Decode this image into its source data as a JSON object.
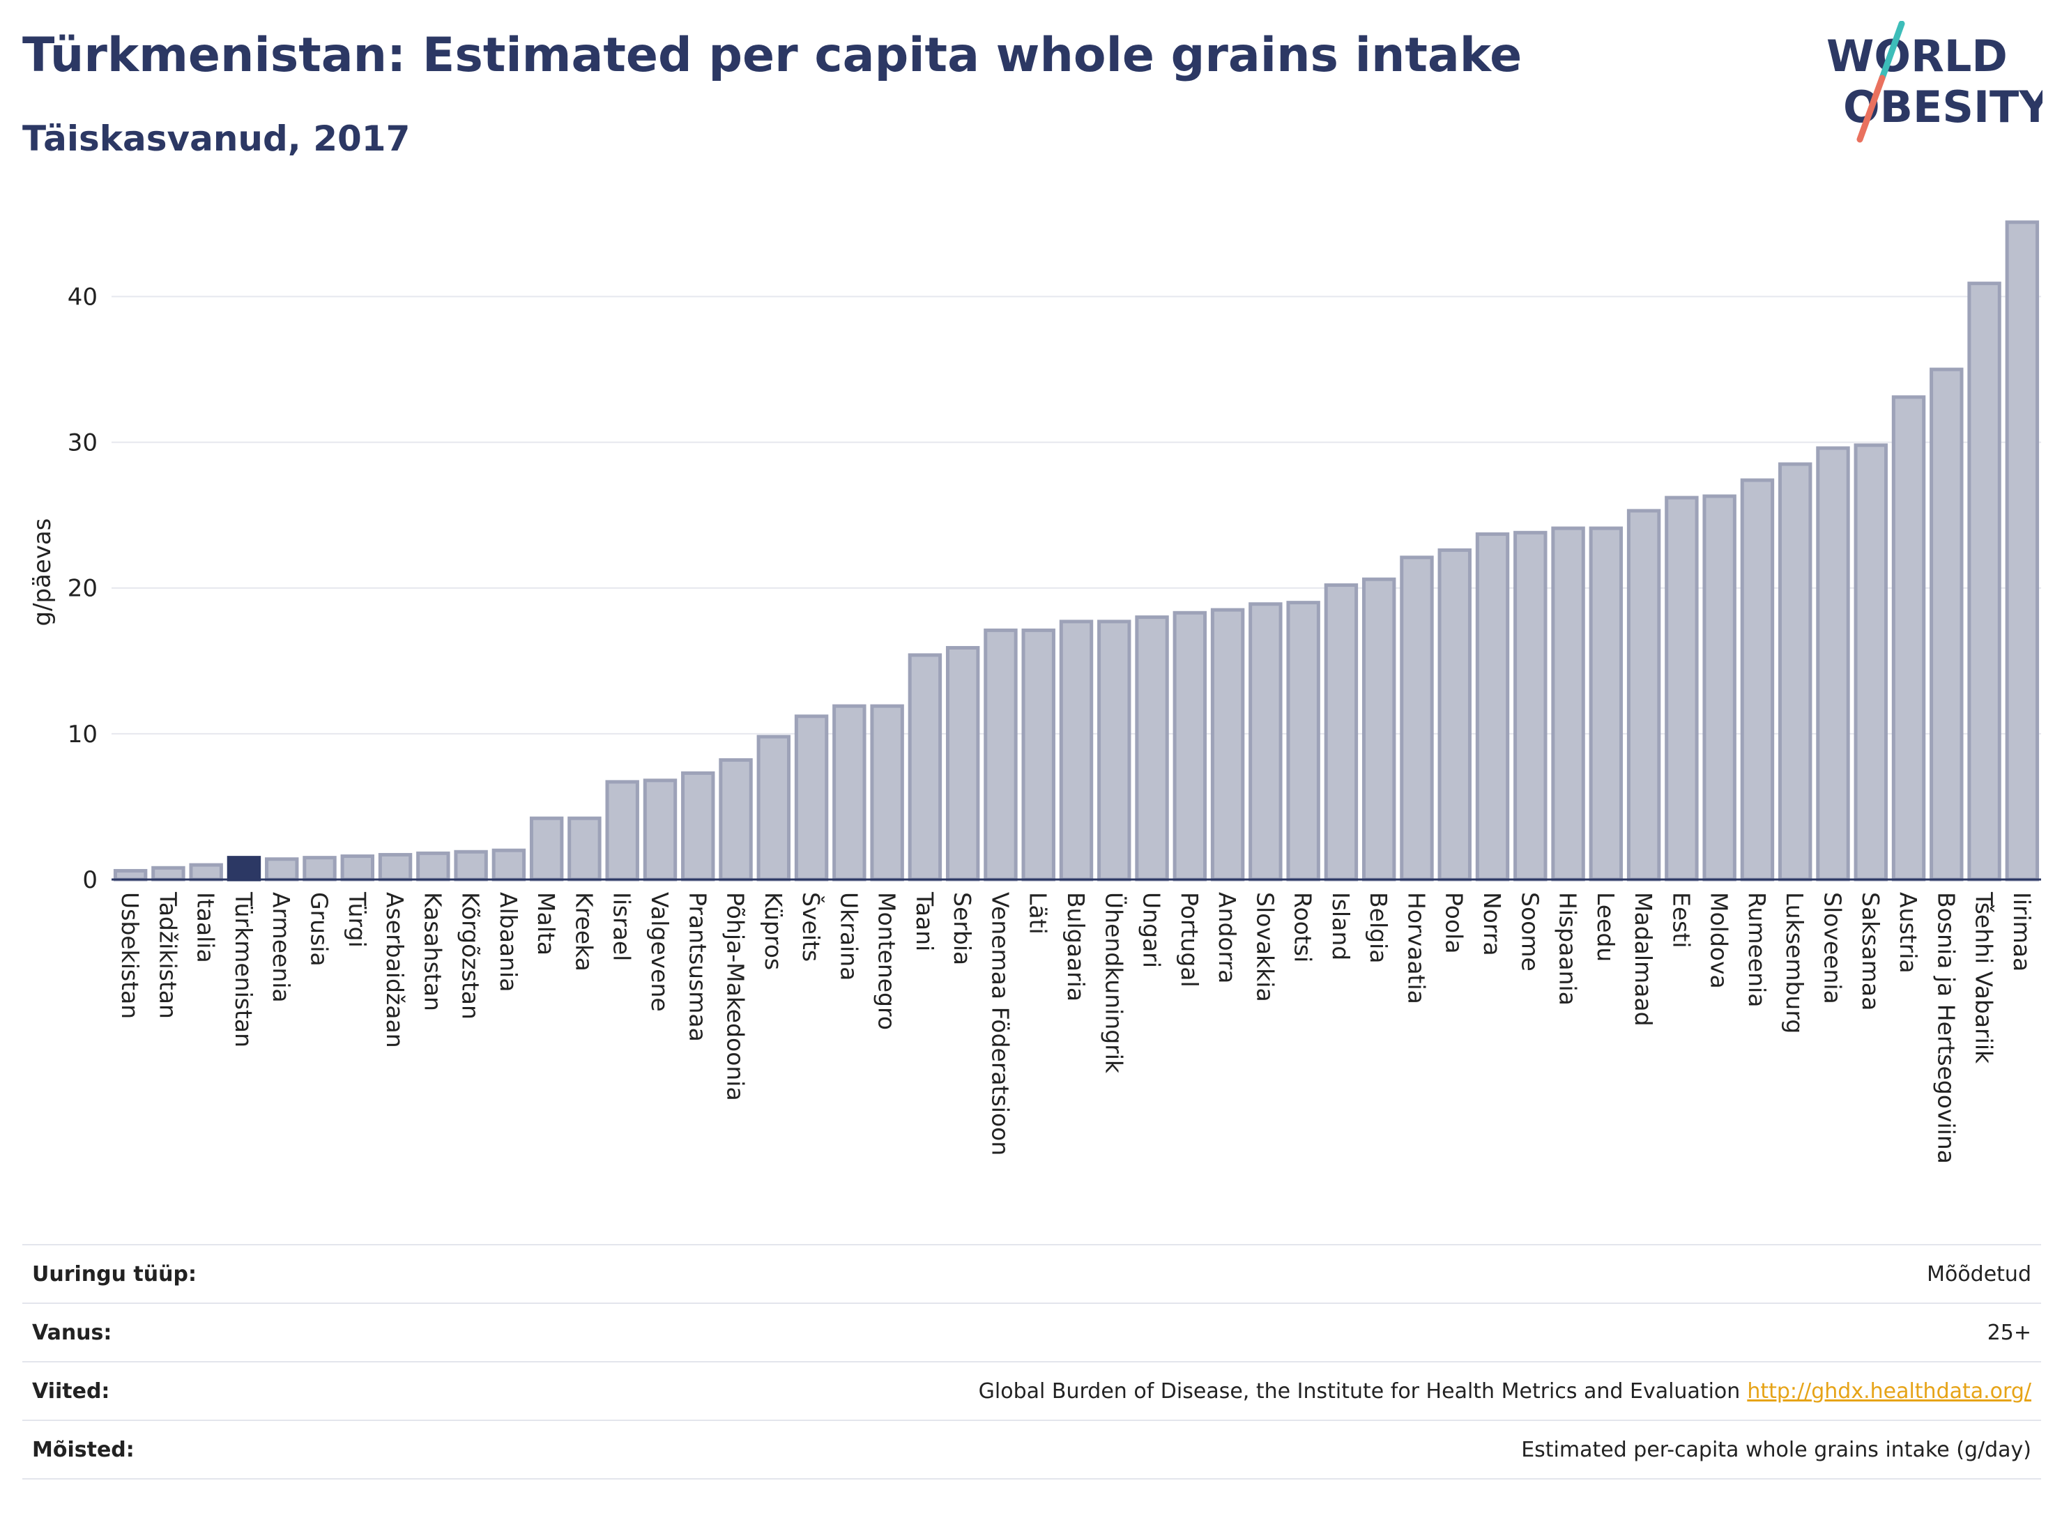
{
  "header": {
    "title": "Türkmenistan: Estimated per capita whole grains intake",
    "subtitle": "Täiskasvanud, 2017"
  },
  "logo": {
    "line1": "WORLD",
    "line2": "OBESITY"
  },
  "colors": {
    "bar": "#bcc0ce",
    "bar_stroke": "#9da2b8",
    "highlight": "#2c3864",
    "title": "#2c3864",
    "grid": "#e6e7ee",
    "logo_teal": "#3dbdb9",
    "logo_coral": "#e9715e",
    "link": "#e6a317"
  },
  "chart_data": {
    "type": "bar",
    "ylabel": "g/päevas",
    "xlabel": "",
    "ylim": [
      0,
      46
    ],
    "yticks": [
      0,
      10,
      20,
      30,
      40
    ],
    "grid": true,
    "highlight": "Türkmenistan",
    "categories": [
      "Usbekistan",
      "Tadžikistan",
      "Itaalia",
      "Türkmenistan",
      "Armeenia",
      "Grusia",
      "Türgi",
      "Aserbaidžaan",
      "Kasahstan",
      "Kõrgõzstan",
      "Albaania",
      "Malta",
      "Kreeka",
      "Iisrael",
      "Valgevene",
      "Prantsusmaa",
      "Põhja-Makedoonia",
      "Küpros",
      "Šveits",
      "Ukraina",
      "Montenegro",
      "Taani",
      "Serbia",
      "Venemaa Föderatsioon",
      "Läti",
      "Bulgaaria",
      "Ühendkuningrik",
      "Ungari",
      "Portugal",
      "Andorra",
      "Slovakkia",
      "Rootsi",
      "Island",
      "Belgia",
      "Horvaatia",
      "Poola",
      "Norra",
      "Soome",
      "Hispaania",
      "Leedu",
      "Madalmaad",
      "Eesti",
      "Moldova",
      "Rumeenia",
      "Luksemburg",
      "Sloveenia",
      "Saksamaa",
      "Austria",
      "Bosnia ja Hertsegoviina",
      "Tšehhi Vabariik",
      "Iirimaa"
    ],
    "values": [
      0.6,
      0.8,
      1.0,
      1.5,
      1.4,
      1.5,
      1.6,
      1.7,
      1.8,
      1.9,
      2.0,
      4.2,
      4.2,
      6.7,
      6.8,
      7.3,
      8.2,
      9.8,
      11.2,
      11.9,
      11.9,
      15.4,
      15.9,
      17.1,
      17.1,
      17.7,
      17.7,
      18.0,
      18.3,
      18.5,
      18.9,
      19.0,
      20.2,
      20.6,
      22.1,
      22.6,
      23.7,
      23.8,
      24.1,
      24.1,
      25.3,
      26.2,
      26.3,
      27.4,
      28.5,
      29.6,
      29.8,
      33.1,
      35.0,
      40.9,
      45.1
    ]
  },
  "meta": [
    {
      "label": "Uuringu tüüp:",
      "value": "Mõõdetud"
    },
    {
      "label": "Vanus:",
      "value": "25+"
    },
    {
      "label": "Viited:",
      "value": "Global Burden of Disease, the Institute for Health Metrics and Evaluation",
      "link": "http://ghdx.healthdata.org/"
    },
    {
      "label": "Mõisted:",
      "value": "Estimated per-capita whole grains intake (g/day)"
    }
  ]
}
